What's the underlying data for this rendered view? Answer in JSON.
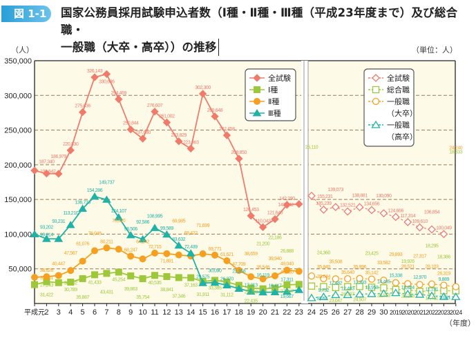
{
  "figure_label": "図 1-1",
  "title_line1": "国家公務員採用試験申込者数（Ⅰ種・Ⅱ種・Ⅲ種（平成23年度まで）及び総合職・",
  "title_line2": "一般職（大卒・高卒））の推移",
  "y_unit": "（人）",
  "unit_note": "（単位：人）",
  "x_unit": "（年度）",
  "colors": {
    "total": "#f07b6b",
    "type1": "#9cc83a",
    "type2": "#f5a020",
    "type3": "#1fb2a6",
    "plot_bg": "#fefae8",
    "grid": "#9a7a55",
    "badge": "#2a9fd8"
  },
  "chart_data": {
    "type": "line",
    "ylim": [
      0,
      350000
    ],
    "yticks": [
      "50,000",
      "100,000",
      "150,000",
      "200,000",
      "250,000",
      "300,000",
      "350,000"
    ],
    "ytick_values": [
      50000,
      100000,
      150000,
      200000,
      250000,
      300000,
      350000
    ],
    "grid": "horizontal dashed",
    "left_panel": {
      "x": [
        "平成元",
        "2",
        "3",
        "4",
        "5",
        "6",
        "7",
        "8",
        "9",
        "10",
        "11",
        "12",
        "13",
        "14",
        "15",
        "16",
        "17",
        "18",
        "19",
        "20",
        "21",
        "22",
        "23"
      ],
      "legend_placement": "top-right",
      "series": [
        {
          "key": "total",
          "name": "全試験",
          "marker": "diamond",
          "values": [
            191642,
            187340,
            186979,
            220830,
            275836,
            326143,
            330686,
            294469,
            250844,
            237630,
            276607,
            261002,
            233829,
            223363,
            302300,
            269648,
            242458,
            208850,
            126453,
            110043,
            121646,
            142290,
            143342
          ]
        },
        {
          "key": "type1",
          "name": "Ⅰ種",
          "marker": "square",
          "values": [
            27243,
            31422,
            30102,
            30789,
            35887,
            41433,
            43431,
            45254,
            39863,
            35754,
            40535,
            38841,
            37346,
            37163,
            31911,
            33385,
            31112,
            26268,
            22435,
            21200,
            22186,
            26888,
            27567
          ]
        },
        {
          "key": "type2",
          "name": "Ⅱ種",
          "marker": "circle",
          "values": [
            37801,
            38626,
            40447,
            47567,
            61076,
            76048,
            80211,
            78320,
            68247,
            64242,
            72715,
            71891,
            69985,
            68422,
            71699,
            69771,
            61621,
            47709,
            38659,
            35546,
            39940,
            48040,
            46450
          ]
        },
        {
          "key": "type3",
          "name": "Ⅲ種",
          "marker": "triangle",
          "values": [
            99914,
            93202,
            93231,
            113210,
            136733,
            154286,
            149737,
            124107,
            98506,
            92586,
            108995,
            99589,
            83632,
            72439,
            29575,
            30090,
            26370,
            21358,
            17313,
            16119,
            16417,
            17311,
            19667
          ]
        }
      ]
    },
    "right_panel": {
      "x": [
        "24",
        "25",
        "26",
        "27",
        "28",
        "29",
        "30",
        "2019",
        "2020",
        "2021",
        "2022",
        "2023",
        "2024"
      ],
      "legend_placement": "top-right",
      "series": [
        {
          "key": "total",
          "name": "全試験",
          "marker": "diamond-open",
          "values": [
            155231,
            135239,
            139073,
            132521,
            138881,
            134656,
            130090,
            124666,
            117314,
            109610,
            106854,
            100049,
            null
          ]
        },
        {
          "key": "type1",
          "name": "総合職",
          "marker": "square-open",
          "values": [
            25110,
            24360,
            23047,
            24297,
            24507,
            23425,
            22559,
            20208,
            19926,
            17411,
            18295,
            18386,
            18333
          ]
        },
        {
          "key": "type2",
          "name": "一般職",
          "name2": "（大卒）",
          "marker": "circle-open",
          "values": [
            39644,
            35840,
            35508,
            35640,
            35996,
            35142,
            33582,
            29893,
            28521,
            27317,
            28103,
            26319,
            24240
          ]
        },
        {
          "key": "type3",
          "name": "一般職",
          "name2": "（高卒）",
          "marker": "triangle-open",
          "values": [
            8051,
            9752,
            12482,
            12483,
            13393,
            13958,
            14465,
            15338,
            13824,
            12970,
            11191,
            9889,
            9681
          ]
        }
      ]
    }
  }
}
